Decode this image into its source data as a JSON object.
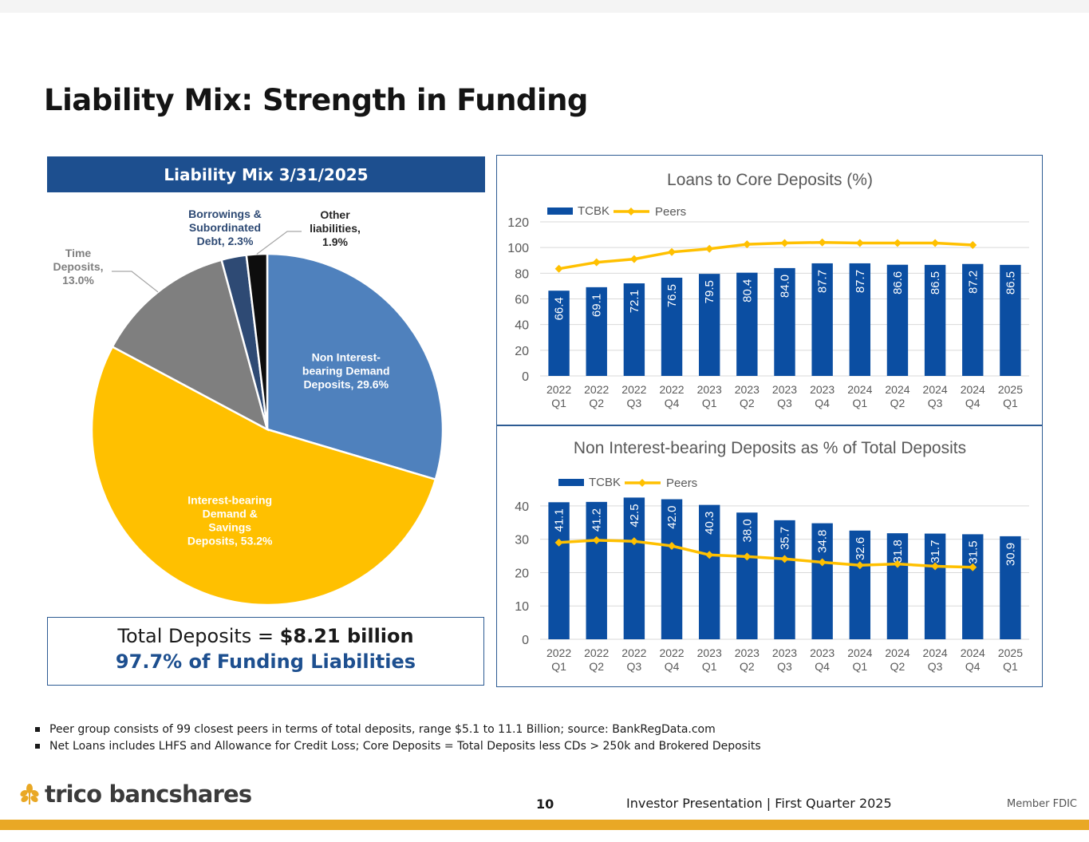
{
  "title": "Liability Mix: Strength in Funding",
  "pie": {
    "header": "Liability Mix 3/31/2025",
    "total_label": "Total Deposits = ",
    "total_value": "$8.21 billion",
    "funding_note": "97.7% of Funding Liabilities"
  },
  "chart_data": [
    {
      "type": "pie",
      "title": "Liability Mix 3/31/2025",
      "slices": [
        {
          "label": "Non Interest-bearing Demand Deposits, 29.6%",
          "lines": [
            "Non Interest-",
            "bearing Demand",
            "Deposits, 29.6%"
          ],
          "value": 29.6,
          "color": "#4f81bd"
        },
        {
          "label": "Interest-bearing Demand & Savings Deposits, 53.2%",
          "lines": [
            "Interest-bearing",
            "Demand &",
            "Savings",
            "Deposits, 53.2%"
          ],
          "value": 53.2,
          "color": "#ffc000"
        },
        {
          "label": "Time Deposits, 13.0%",
          "lines": [
            "Time",
            "Deposits,",
            "13.0%"
          ],
          "value": 13.0,
          "color": "#7f7f7f"
        },
        {
          "label": "Borrowings & Subordinated Debt, 2.3%",
          "lines": [
            "Borrowings &",
            "Subordinated",
            "Debt, 2.3%"
          ],
          "value": 2.3,
          "color": "#2e4a74"
        },
        {
          "label": "Other liabilities, 1.9%",
          "lines": [
            "Other",
            "liabilities,",
            "1.9%"
          ],
          "value": 1.9,
          "color": "#0d0d0d"
        }
      ]
    },
    {
      "type": "bar",
      "title": "Loans to Core Deposits (%)",
      "categories": [
        [
          "2022",
          "Q1"
        ],
        [
          "2022",
          "Q2"
        ],
        [
          "2022",
          "Q3"
        ],
        [
          "2022",
          "Q4"
        ],
        [
          "2023",
          "Q1"
        ],
        [
          "2023",
          "Q2"
        ],
        [
          "2023",
          "Q3"
        ],
        [
          "2023",
          "Q4"
        ],
        [
          "2024",
          "Q1"
        ],
        [
          "2024",
          "Q2"
        ],
        [
          "2024",
          "Q3"
        ],
        [
          "2024",
          "Q4"
        ],
        [
          "2025",
          "Q1"
        ]
      ],
      "series": [
        {
          "name": "TCBK",
          "kind": "bar",
          "color": "#0b4ea2",
          "values": [
            66.4,
            69.1,
            72.1,
            76.5,
            79.5,
            80.4,
            84.0,
            87.7,
            87.7,
            86.6,
            86.5,
            87.2,
            86.5
          ],
          "labels": [
            "66.4",
            "69.1",
            "72.1",
            "76.5",
            "79.5",
            "80.4",
            "84.0",
            "87.7",
            "87.7",
            "86.6",
            "86.5",
            "87.2",
            "86.5"
          ]
        },
        {
          "name": "Peers",
          "kind": "line",
          "color": "#ffc000",
          "values": [
            83.5,
            88.5,
            91.0,
            96.5,
            99.0,
            102.5,
            103.5,
            104.0,
            103.5,
            103.5,
            103.5,
            102.0,
            null
          ]
        }
      ],
      "yticks": [
        0,
        20,
        40,
        60,
        80,
        100,
        120
      ],
      "ylim": [
        0,
        120
      ],
      "legend": "top-left",
      "grid": true
    },
    {
      "type": "bar",
      "title": "Non Interest-bearing Deposits as % of Total Deposits",
      "categories": [
        [
          "2022",
          "Q1"
        ],
        [
          "2022",
          "Q2"
        ],
        [
          "2022",
          "Q3"
        ],
        [
          "2022",
          "Q4"
        ],
        [
          "2023",
          "Q1"
        ],
        [
          "2023",
          "Q2"
        ],
        [
          "2023",
          "Q3"
        ],
        [
          "2023",
          "Q4"
        ],
        [
          "2024",
          "Q1"
        ],
        [
          "2024",
          "Q2"
        ],
        [
          "2024",
          "Q3"
        ],
        [
          "2024",
          "Q4"
        ],
        [
          "2025",
          "Q1"
        ]
      ],
      "series": [
        {
          "name": "TCBK",
          "kind": "bar",
          "color": "#0b4ea2",
          "values": [
            41.1,
            41.2,
            42.5,
            42.0,
            40.3,
            38.0,
            35.7,
            34.8,
            32.6,
            31.8,
            31.7,
            31.5,
            30.9
          ],
          "labels": [
            "41.1",
            "41.2",
            "42.5",
            "42.0",
            "40.3",
            "38.0",
            "35.7",
            "34.8",
            "32.6",
            "31.8",
            "31.7",
            "31.5",
            "30.9"
          ]
        },
        {
          "name": "Peers",
          "kind": "line",
          "color": "#ffc000",
          "values": [
            29.0,
            29.7,
            29.4,
            28.0,
            25.3,
            24.8,
            24.1,
            23.1,
            22.2,
            22.6,
            21.9,
            21.6,
            null
          ]
        }
      ],
      "yticks": [
        0,
        10,
        20,
        30,
        40
      ],
      "ylim": [
        0,
        45
      ],
      "legend": "top-left",
      "grid": true
    }
  ],
  "footnotes": [
    "Peer group consists of 99 closest peers in terms of total deposits, range $5.1 to 11.1 Billion; source: BankRegData.com",
    "Net Loans includes LHFS and Allowance for Credit Loss; Core Deposits = Total Deposits less CDs > 250k and Brokered Deposits"
  ],
  "footer": {
    "logo_text": "trico bancshares",
    "page_number": "10",
    "presentation": "Investor Presentation  |  First Quarter 2025",
    "member": "Member FDIC"
  }
}
